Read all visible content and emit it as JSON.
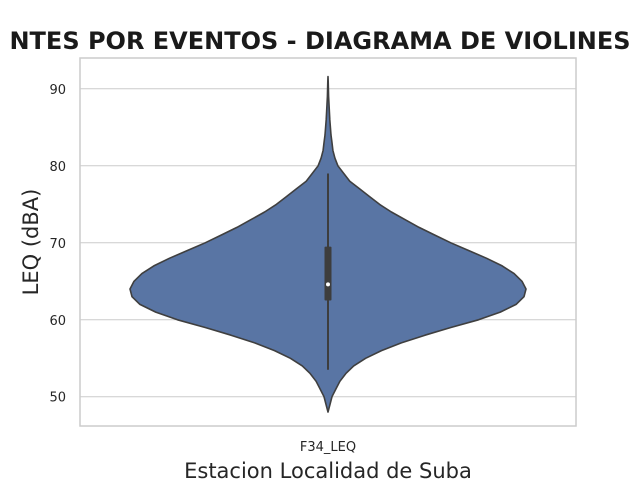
{
  "chart_data": {
    "type": "violin",
    "title": "NTES POR EVENTOS - DIAGRAMA DE VIOLINES",
    "xlabel": "Estacion Localidad de Suba",
    "ylabel": "LEQ (dBA)",
    "categories": [
      "F34_LEQ"
    ],
    "yticks": [
      50,
      60,
      70,
      80,
      90
    ],
    "ylim": [
      46.2,
      94.0
    ],
    "grid": true,
    "violin": {
      "min": 48.0,
      "max": 91.6,
      "whisker_low": 53.5,
      "whisker_high": 79.0,
      "q1": 62.5,
      "median": 64.6,
      "q3": 69.5,
      "density_profile": [
        [
          48.0,
          0.0
        ],
        [
          49.0,
          0.01
        ],
        [
          50.0,
          0.02
        ],
        [
          51.0,
          0.04
        ],
        [
          52.0,
          0.06
        ],
        [
          53.0,
          0.09
        ],
        [
          54.0,
          0.13
        ],
        [
          55.0,
          0.19
        ],
        [
          56.0,
          0.27
        ],
        [
          57.0,
          0.37
        ],
        [
          58.0,
          0.49
        ],
        [
          59.0,
          0.62
        ],
        [
          60.0,
          0.76
        ],
        [
          61.0,
          0.87
        ],
        [
          62.0,
          0.95
        ],
        [
          63.0,
          0.99
        ],
        [
          64.0,
          1.0
        ],
        [
          65.0,
          0.98
        ],
        [
          66.0,
          0.94
        ],
        [
          67.0,
          0.88
        ],
        [
          68.0,
          0.8
        ],
        [
          69.0,
          0.71
        ],
        [
          70.0,
          0.62
        ],
        [
          71.0,
          0.54
        ],
        [
          72.0,
          0.46
        ],
        [
          73.0,
          0.39
        ],
        [
          74.0,
          0.32
        ],
        [
          75.0,
          0.26
        ],
        [
          76.0,
          0.21
        ],
        [
          77.0,
          0.16
        ],
        [
          78.0,
          0.11
        ],
        [
          79.0,
          0.08
        ],
        [
          80.0,
          0.05
        ],
        [
          81.0,
          0.035
        ],
        [
          82.0,
          0.025
        ],
        [
          83.0,
          0.02
        ],
        [
          84.0,
          0.015
        ],
        [
          85.0,
          0.012
        ],
        [
          86.0,
          0.009
        ],
        [
          87.0,
          0.007
        ],
        [
          88.0,
          0.005
        ],
        [
          89.0,
          0.003
        ],
        [
          90.0,
          0.002
        ],
        [
          91.0,
          0.001
        ],
        [
          91.6,
          0.0
        ]
      ]
    }
  },
  "colors": {
    "violin_fill": "#5975a4",
    "violin_stroke": "#3f3f3f",
    "box": "#3d3d3d",
    "median_dot": "#ffffff",
    "grid": "#cccccc",
    "axes_border": "#cccccc"
  }
}
